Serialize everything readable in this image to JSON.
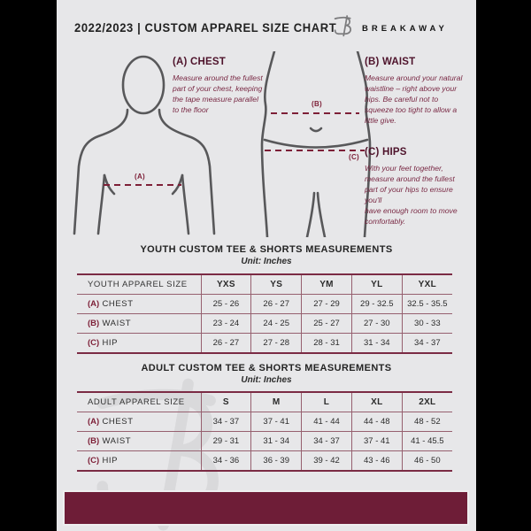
{
  "header": {
    "title": "2022/2023  |  CUSTOM APPAREL SIZE CHART",
    "brand": "BREAKAWAY"
  },
  "colors": {
    "maroon_accent": "#7d1f37",
    "dark_maroon_heading": "#4e132b",
    "footer_bar": "#6e1d37",
    "page_background": "#e7e7e9",
    "figure_outline": "#58585a"
  },
  "measure_guide": {
    "chest": {
      "heading": "(A) CHEST",
      "body": "Measure around the fullest part of your chest, keeping the tape measure parallel to the floor"
    },
    "waist": {
      "heading": "(B) WAIST",
      "body": "Measure around your natural waistline – right above your hips. Be careful not to squeeze too tight to allow a little give."
    },
    "hips": {
      "heading": "(C) HIPS",
      "body": "With your feet together, measure around the fullest part of your hips to ensure you'll\nhave enough room to move comfortably."
    },
    "labels": {
      "a": "(A)",
      "b": "(B)",
      "c": "(C)"
    }
  },
  "youth_table": {
    "title": "YOUTH CUSTOM TEE & SHORTS MEASUREMENTS",
    "unit": "Unit: Inches",
    "header": [
      "YOUTH APPAREL SIZE",
      "YXS",
      "YS",
      "YM",
      "YL",
      "YXL"
    ],
    "rows": [
      {
        "prefix": "(A)",
        "label": "CHEST",
        "values": [
          "25 - 26",
          "26 - 27",
          "27 - 29",
          "29 - 32.5",
          "32.5 - 35.5"
        ]
      },
      {
        "prefix": "(B)",
        "label": "WAIST",
        "values": [
          "23 - 24",
          "24 - 25",
          "25 - 27",
          "27 - 30",
          "30 - 33"
        ]
      },
      {
        "prefix": "(C)",
        "label": "HIP",
        "values": [
          "26 - 27",
          "27 - 28",
          "28 - 31",
          "31 - 34",
          "34 - 37"
        ]
      }
    ]
  },
  "adult_table": {
    "title": "ADULT CUSTOM TEE & SHORTS MEASUREMENTS",
    "unit": "Unit: Inches",
    "header": [
      "ADULT APPAREL SIZE",
      "S",
      "M",
      "L",
      "XL",
      "2XL"
    ],
    "rows": [
      {
        "prefix": "(A)",
        "label": "CHEST",
        "values": [
          "34 - 37",
          "37 - 41",
          "41 - 44",
          "44 - 48",
          "48 - 52"
        ]
      },
      {
        "prefix": "(B)",
        "label": "WAIST",
        "values": [
          "29 - 31",
          "31 - 34",
          "34 - 37",
          "37 - 41",
          "41 - 45.5"
        ]
      },
      {
        "prefix": "(C)",
        "label": "HIP",
        "values": [
          "34 - 36",
          "36 - 39",
          "39 - 42",
          "43 - 46",
          "46 - 50"
        ]
      }
    ]
  }
}
